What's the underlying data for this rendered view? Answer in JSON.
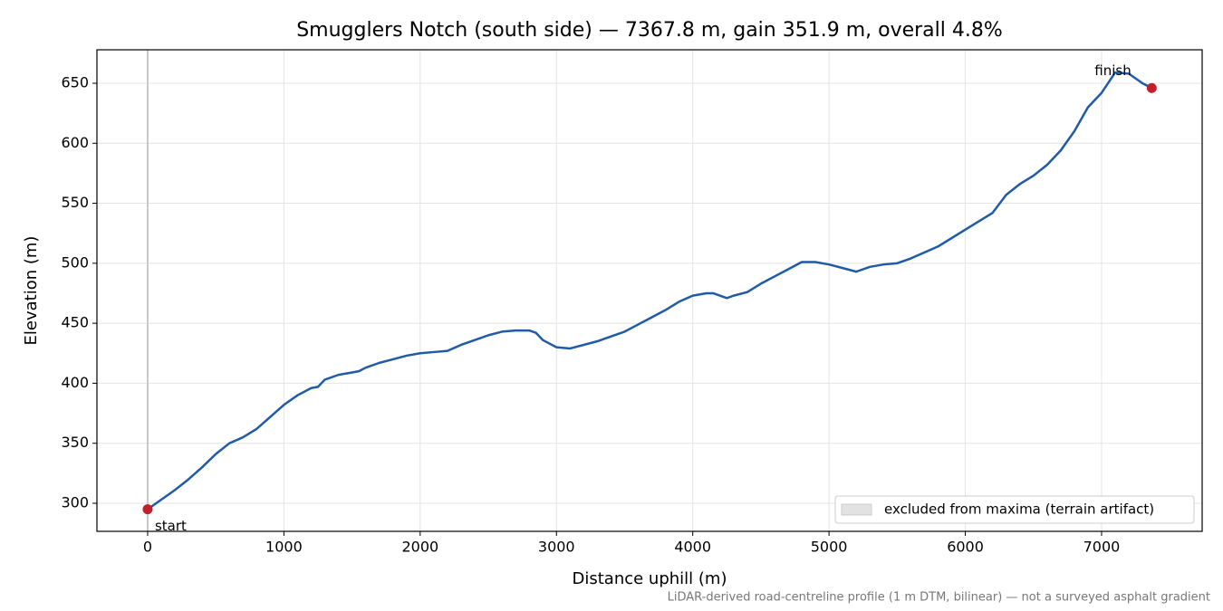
{
  "chart_data": {
    "type": "line",
    "title": "Smugglers Notch (south side) — 7367.8 m, gain 351.9 m, overall 4.8%",
    "x_label": "Distance uphill (m)",
    "y_label": "Elevation (m)",
    "footnote": "LiDAR-derived road-centreline profile (1 m DTM, bilinear) — not a surveyed asphalt gradient",
    "xlim": [
      -372,
      7738
    ],
    "ylim": [
      276.6,
      677.9
    ],
    "xticks": [
      0,
      1000,
      2000,
      3000,
      4000,
      5000,
      6000,
      7000
    ],
    "yticks": [
      300,
      350,
      400,
      450,
      500,
      550,
      600,
      650
    ],
    "grid": true,
    "vlines": [
      0
    ],
    "series": [
      {
        "color": "#1f5ba8",
        "x": [
          0,
          100,
          200,
          300,
          400,
          500,
          600,
          700,
          800,
          900,
          1000,
          1100,
          1200,
          1250,
          1300,
          1400,
          1500,
          1550,
          1600,
          1700,
          1800,
          1900,
          2000,
          2100,
          2200,
          2300,
          2400,
          2500,
          2600,
          2700,
          2750,
          2800,
          2850,
          2900,
          3000,
          3100,
          3200,
          3300,
          3400,
          3500,
          3600,
          3700,
          3800,
          3900,
          4000,
          4100,
          4150,
          4250,
          4300,
          4400,
          4500,
          4600,
          4700,
          4800,
          4900,
          5000,
          5100,
          5200,
          5300,
          5400,
          5500,
          5600,
          5700,
          5800,
          5900,
          6000,
          6100,
          6200,
          6300,
          6400,
          6500,
          6600,
          6700,
          6800,
          6900,
          7000,
          7100,
          7200,
          7300,
          7367.8
        ],
        "values": [
          295,
          303,
          311,
          320,
          330,
          341,
          350,
          355,
          362,
          372,
          382,
          390,
          396,
          397,
          403,
          407,
          409,
          410,
          413,
          417,
          420,
          423,
          425,
          426,
          427,
          432,
          436,
          440,
          443,
          444,
          444,
          444,
          442,
          436,
          430,
          429,
          432,
          435,
          439,
          443,
          449,
          455,
          461,
          468,
          473,
          475,
          475,
          471,
          473,
          476,
          483,
          489,
          495,
          501,
          501,
          499,
          496,
          493,
          497,
          499,
          500,
          504,
          509,
          514,
          521,
          528,
          535,
          542,
          557,
          566,
          573,
          582,
          594,
          610,
          630,
          642,
          659,
          658,
          650,
          646
        ]
      }
    ],
    "markers": {
      "x": [
        0,
        7367.8
      ],
      "y": [
        295,
        646
      ],
      "labels": [
        "start",
        "finish"
      ],
      "color": "#c0202a"
    },
    "legend": {
      "label": "excluded from maxima (terrain artifact)",
      "color": "#e2e2e2",
      "position": "lower right"
    }
  }
}
